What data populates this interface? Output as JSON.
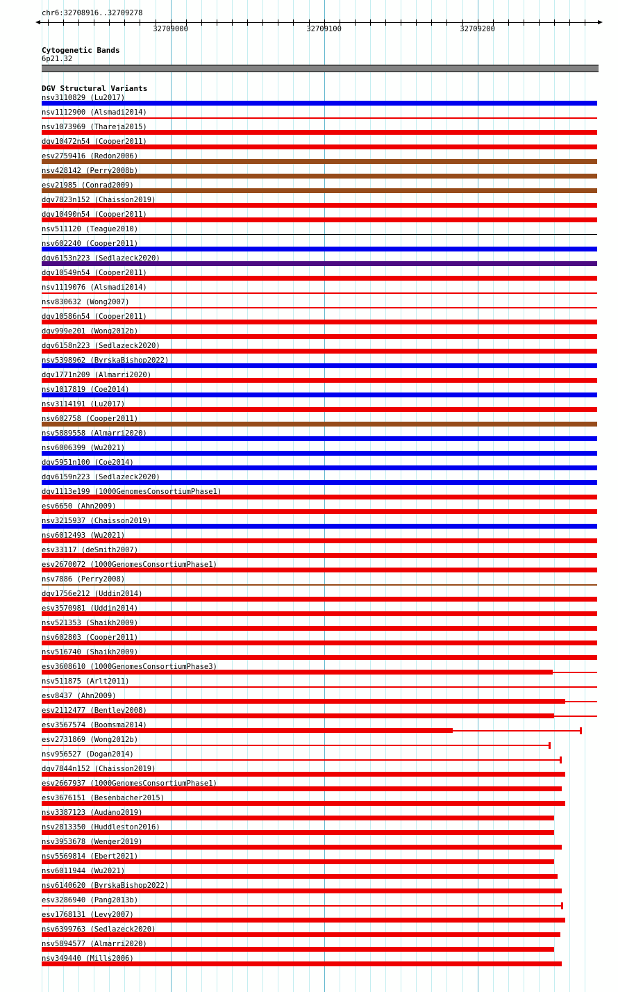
{
  "chart_data": {
    "type": "bar",
    "orientation": "horizontal-genomic-tracks",
    "grid": {
      "show": true,
      "minor_color": "#c4eef0",
      "major_color": "#62b8ce",
      "minor_interval_bp": 10
    },
    "region": {
      "title": "chr6:32708916..32709278",
      "chromosome": "chr6",
      "start": 32708916,
      "end": 32709278
    },
    "ruler": {
      "major_ticks": [
        {
          "pos": 32709000,
          "label": "32709000"
        },
        {
          "pos": 32709100,
          "label": "32709100"
        },
        {
          "pos": 32709200,
          "label": "32709200"
        }
      ]
    },
    "cytogenetic": {
      "header": "Cytogenetic Bands",
      "band_name": "6p21.32",
      "band_color": "#828282"
    },
    "variants": {
      "header": "DGV Structural Variants",
      "colors": {
        "red": "#ee0000",
        "blue": "#0000ee",
        "brown": "#964b19",
        "purple": "#4b0a82",
        "black": "#000000"
      },
      "rows": [
        {
          "label": "nsv3110829 (Lu2017)",
          "color": "blue",
          "thick": [
            32708916,
            32709278
          ]
        },
        {
          "label": "nsv1112900 (Alsmadi2014)",
          "color": "red",
          "thin": [
            32708916,
            32709278
          ]
        },
        {
          "label": "nsv1073969 (Thareja2015)",
          "color": "red",
          "thick": [
            32708916,
            32709278
          ]
        },
        {
          "label": "dgv10472n54 (Cooper2011)",
          "color": "red",
          "thick": [
            32708916,
            32709278
          ]
        },
        {
          "label": "esv2759416 (Redon2006)",
          "color": "brown",
          "thick": [
            32708916,
            32709278
          ]
        },
        {
          "label": "nsv428142 (Perry2008b)",
          "color": "brown",
          "thick": [
            32708916,
            32709278
          ]
        },
        {
          "label": "esv21985 (Conrad2009)",
          "color": "brown",
          "thick": [
            32708916,
            32709278
          ]
        },
        {
          "label": "dgv7823n152 (Chaisson2019)",
          "color": "red",
          "thick": [
            32708916,
            32709278
          ]
        },
        {
          "label": "dgv10490n54 (Cooper2011)",
          "color": "red",
          "thick": [
            32708916,
            32709278
          ]
        },
        {
          "label": "nsv511120 (Teague2010)",
          "color": "black",
          "thin": [
            32708916,
            32709278
          ],
          "style": "hairline"
        },
        {
          "label": "nsv602240 (Cooper2011)",
          "color": "blue",
          "thick": [
            32708916,
            32709278
          ]
        },
        {
          "label": "dgv6153n223 (Sedlazeck2020)",
          "color": "purple",
          "thick": [
            32708916,
            32709278
          ]
        },
        {
          "label": "dgv10549n54 (Cooper2011)",
          "color": "red",
          "thick": [
            32708916,
            32709278
          ]
        },
        {
          "label": "nsv1119076 (Alsmadi2014)",
          "color": "red",
          "thin": [
            32708916,
            32709278
          ]
        },
        {
          "label": "nsv830632 (Wong2007)",
          "color": "red",
          "thin": [
            32708916,
            32709278
          ]
        },
        {
          "label": "dgv10586n54 (Cooper2011)",
          "color": "red",
          "thick": [
            32708916,
            32709278
          ]
        },
        {
          "label": "dgv999e201 (Wong2012b)",
          "color": "red",
          "thick": [
            32708916,
            32709278
          ]
        },
        {
          "label": "dgv6158n223 (Sedlazeck2020)",
          "color": "red",
          "thick": [
            32708916,
            32709278
          ]
        },
        {
          "label": "nsv5398962 (ByrskaBishop2022)",
          "color": "blue",
          "thick": [
            32708916,
            32709278
          ]
        },
        {
          "label": "dgv1771n209 (Almarri2020)",
          "color": "red",
          "thick": [
            32708916,
            32709278
          ]
        },
        {
          "label": "nsv1017819 (Coe2014)",
          "color": "blue",
          "thick": [
            32708916,
            32709278
          ]
        },
        {
          "label": "nsv3114191 (Lu2017)",
          "color": "red",
          "thick": [
            32708916,
            32709278
          ]
        },
        {
          "label": "nsv602758 (Cooper2011)",
          "color": "brown",
          "thick": [
            32708916,
            32709278
          ]
        },
        {
          "label": "nsv5889558 (Almarri2020)",
          "color": "blue",
          "thick": [
            32708916,
            32709278
          ]
        },
        {
          "label": "nsv6006399 (Wu2021)",
          "color": "blue",
          "thick": [
            32708916,
            32709278
          ]
        },
        {
          "label": "dgv5951n100 (Coe2014)",
          "color": "blue",
          "thick": [
            32708916,
            32709278
          ]
        },
        {
          "label": "dgv6159n223 (Sedlazeck2020)",
          "color": "blue",
          "thick": [
            32708916,
            32709278
          ]
        },
        {
          "label": "dgv1113e199 (1000GenomesConsortiumPhase1)",
          "color": "red",
          "thick": [
            32708916,
            32709278
          ]
        },
        {
          "label": "esv6650 (Ahn2009)",
          "color": "red",
          "thick": [
            32708916,
            32709278
          ]
        },
        {
          "label": "nsv3215937 (Chaisson2019)",
          "color": "blue",
          "thick": [
            32708916,
            32709278
          ]
        },
        {
          "label": "nsv6012493 (Wu2021)",
          "color": "red",
          "thick": [
            32708916,
            32709278
          ]
        },
        {
          "label": "esv33117 (deSmith2007)",
          "color": "red",
          "thick": [
            32708916,
            32709278
          ]
        },
        {
          "label": "esv2670072 (1000GenomesConsortiumPhase1)",
          "color": "red",
          "thick": [
            32708916,
            32709278
          ]
        },
        {
          "label": "nsv7886 (Perry2008)",
          "color": "brown",
          "thin": [
            32708916,
            32709278
          ]
        },
        {
          "label": "dgv1756e212 (Uddin2014)",
          "color": "red",
          "thick": [
            32708916,
            32709278
          ]
        },
        {
          "label": "esv3570981 (Uddin2014)",
          "color": "red",
          "thick": [
            32708916,
            32709278
          ]
        },
        {
          "label": "nsv521353 (Shaikh2009)",
          "color": "red",
          "thick": [
            32708916,
            32709278
          ]
        },
        {
          "label": "nsv602803 (Cooper2011)",
          "color": "red",
          "thick": [
            32708916,
            32709278
          ]
        },
        {
          "label": "nsv516740 (Shaikh2009)",
          "color": "red",
          "thick": [
            32708916,
            32709278
          ]
        },
        {
          "label": "esv3608610 (1000GenomesConsortiumPhase3)",
          "color": "red",
          "thick": [
            32708916,
            32709249
          ],
          "thin": [
            32709249,
            32709278
          ]
        },
        {
          "label": "nsv511875 (Arlt2011)",
          "color": "red",
          "thin": [
            32708916,
            32709278
          ]
        },
        {
          "label": "esv8437 (Ahn2009)",
          "color": "red",
          "thick": [
            32708916,
            32709257
          ],
          "thin": [
            32709257,
            32709278
          ]
        },
        {
          "label": "esv2112477 (Bentley2008)",
          "color": "red",
          "thick": [
            32708916,
            32709250
          ],
          "thin": [
            32709250,
            32709278
          ]
        },
        {
          "label": "esv3567574 (Boomsma2014)",
          "color": "red",
          "thick": [
            32708916,
            32709184
          ],
          "thin": [
            32709184,
            32709267
          ],
          "end_tick": 32709267
        },
        {
          "label": "esv2731869 (Wong2012b)",
          "color": "red",
          "thin": [
            32708916,
            32709247
          ],
          "end_tick": 32709247
        },
        {
          "label": "nsv956527 (Dogan2014)",
          "color": "red",
          "thin": [
            32708916,
            32709254
          ],
          "end_tick": 32709254
        },
        {
          "label": "dgv7844n152 (Chaisson2019)",
          "color": "red",
          "thick": [
            32708916,
            32709257
          ]
        },
        {
          "label": "esv2667937 (1000GenomesConsortiumPhase1)",
          "color": "red",
          "thick": [
            32708916,
            32709255
          ]
        },
        {
          "label": "esv3676151 (Besenbacher2015)",
          "color": "red",
          "thick": [
            32708916,
            32709257
          ]
        },
        {
          "label": "nsv3387123 (Audano2019)",
          "color": "red",
          "thick": [
            32708916,
            32709250
          ]
        },
        {
          "label": "nsv2813350 (Huddleston2016)",
          "color": "red",
          "thick": [
            32708916,
            32709250
          ]
        },
        {
          "label": "nsv3953678 (Wenger2019)",
          "color": "red",
          "thick": [
            32708916,
            32709255
          ]
        },
        {
          "label": "nsv5569814 (Ebert2021)",
          "color": "red",
          "thick": [
            32708916,
            32709250
          ]
        },
        {
          "label": "nsv6011944 (Wu2021)",
          "color": "red",
          "thick": [
            32708916,
            32709252
          ]
        },
        {
          "label": "nsv6140620 (ByrskaBishop2022)",
          "color": "red",
          "thick": [
            32708916,
            32709255
          ]
        },
        {
          "label": "esv3286940 (Pang2013b)",
          "color": "red",
          "thin": [
            32708916,
            32709255
          ],
          "end_tick": 32709255
        },
        {
          "label": "esv1768131 (Levy2007)",
          "color": "red",
          "thick": [
            32708916,
            32709257
          ]
        },
        {
          "label": "nsv6399763 (Sedlazeck2020)",
          "color": "red",
          "thick": [
            32708916,
            32709254
          ]
        },
        {
          "label": "nsv5894577 (Almarri2020)",
          "color": "red",
          "thick": [
            32708916,
            32709250
          ]
        },
        {
          "label": "nsv349440 (Mills2006)",
          "color": "red",
          "thick": [
            32708916,
            32709255
          ]
        }
      ]
    }
  }
}
